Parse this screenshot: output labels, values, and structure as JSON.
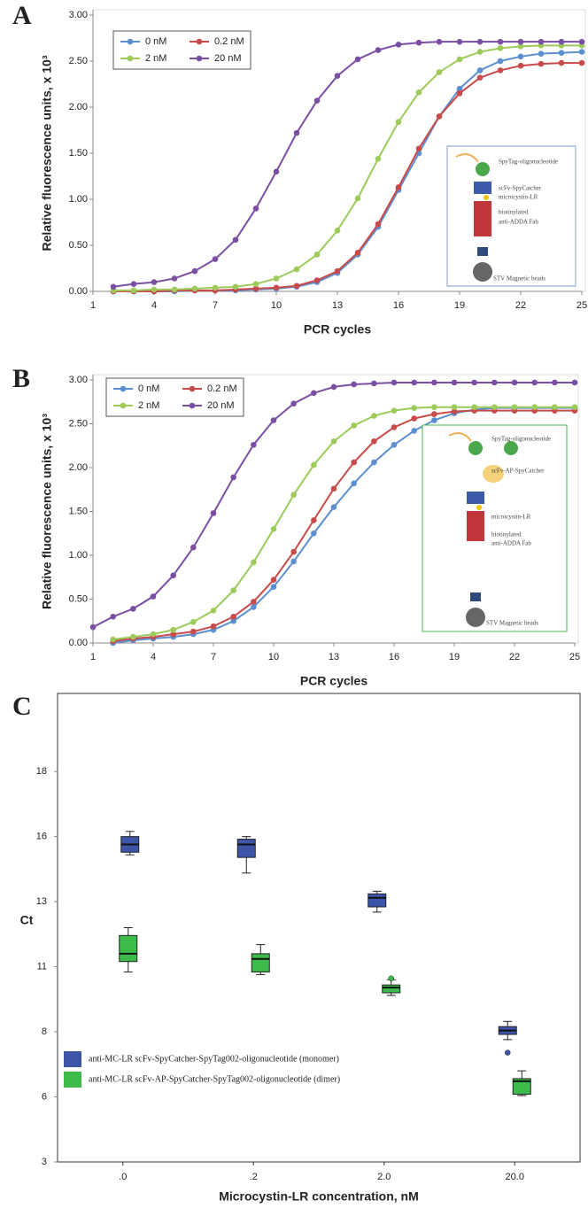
{
  "chart_data": [
    {
      "type": "line",
      "panel": "A",
      "xlabel": "PCR cycles",
      "ylabel": "Relative fluorescence units, x 10³",
      "x": [
        1,
        2,
        3,
        4,
        5,
        6,
        7,
        8,
        9,
        10,
        11,
        12,
        13,
        14,
        15,
        16,
        17,
        18,
        19,
        20,
        21,
        22,
        23,
        24,
        25
      ],
      "xlim": [
        1,
        25
      ],
      "xticks": [
        1,
        4,
        7,
        10,
        13,
        16,
        19,
        22,
        25
      ],
      "ylim": [
        0,
        3
      ],
      "yticks": [
        {
          "value": 0,
          "label": "0.00"
        },
        {
          "value": 0.5,
          "label": "0.50"
        },
        {
          "value": 1,
          "label": "1.00"
        },
        {
          "value": 1.5,
          "label": "1.50"
        },
        {
          "value": 2,
          "label": "2.00"
        },
        {
          "value": 2.5,
          "label": "2.50"
        },
        {
          "value": 3,
          "label": "3.00"
        }
      ],
      "markers": true,
      "series": [
        {
          "name": "0 nM",
          "color": "#5b8fd0",
          "values": [
            null,
            0.0,
            0.0,
            0.0,
            0.0,
            0.01,
            0.01,
            0.01,
            0.02,
            0.03,
            0.05,
            0.1,
            0.2,
            0.4,
            0.7,
            1.1,
            1.5,
            1.9,
            2.2,
            2.4,
            2.5,
            2.55,
            2.58,
            2.59,
            2.6
          ]
        },
        {
          "name": "0.2 nM",
          "color": "#c94a4a",
          "values": [
            null,
            0.0,
            0.0,
            0.0,
            0.01,
            0.01,
            0.01,
            0.02,
            0.03,
            0.04,
            0.06,
            0.12,
            0.22,
            0.42,
            0.73,
            1.13,
            1.55,
            1.9,
            2.15,
            2.32,
            2.4,
            2.45,
            2.47,
            2.48,
            2.48
          ]
        },
        {
          "name": "2 nM",
          "color": "#9ccb5a",
          "values": [
            null,
            0.01,
            0.01,
            0.02,
            0.02,
            0.03,
            0.04,
            0.05,
            0.08,
            0.14,
            0.24,
            0.4,
            0.66,
            1.01,
            1.44,
            1.84,
            2.16,
            2.38,
            2.52,
            2.6,
            2.64,
            2.66,
            2.67,
            2.67,
            2.67
          ]
        },
        {
          "name": "20 nM",
          "color": "#7a4fa3",
          "values": [
            null,
            0.05,
            0.08,
            0.1,
            0.14,
            0.22,
            0.35,
            0.56,
            0.9,
            1.3,
            1.72,
            2.07,
            2.34,
            2.52,
            2.62,
            2.68,
            2.7,
            2.71,
            2.71,
            2.71,
            2.71,
            2.71,
            2.71,
            2.71,
            2.71
          ]
        }
      ],
      "inset_labels": [
        "SpyTag-oligonucleotide",
        "scFv-SpyCatcher",
        "microcystin-LR",
        "biotinylated",
        "anti-ADDA Fab",
        "STV Magnetic beads"
      ]
    },
    {
      "type": "line",
      "panel": "B",
      "xlabel": "PCR cycles",
      "ylabel": "Relative fluorescence units, x 10³",
      "x": [
        1,
        2,
        3,
        4,
        5,
        6,
        7,
        8,
        9,
        10,
        11,
        12,
        13,
        14,
        15,
        16,
        17,
        18,
        19,
        20,
        21,
        22,
        23,
        24,
        25
      ],
      "xlim": [
        1,
        25
      ],
      "xticks": [
        1,
        4,
        7,
        10,
        13,
        16,
        19,
        22,
        25
      ],
      "ylim": [
        0,
        3
      ],
      "yticks": [
        {
          "value": 0,
          "label": "0.00"
        },
        {
          "value": 0.5,
          "label": "0.50"
        },
        {
          "value": 1,
          "label": "1.00"
        },
        {
          "value": 1.5,
          "label": "1.50"
        },
        {
          "value": 2,
          "label": "2.00"
        },
        {
          "value": 2.5,
          "label": "2.50"
        },
        {
          "value": 3,
          "label": "3.00"
        }
      ],
      "markers": true,
      "series": [
        {
          "name": "0 nM",
          "color": "#5b8fd0",
          "values": [
            null,
            0.0,
            0.03,
            0.05,
            0.07,
            0.1,
            0.15,
            0.25,
            0.41,
            0.64,
            0.93,
            1.25,
            1.55,
            1.82,
            2.06,
            2.26,
            2.42,
            2.54,
            2.62,
            2.66,
            2.68,
            2.68,
            2.68,
            2.68,
            2.68
          ]
        },
        {
          "name": "0.2 nM",
          "color": "#c94a4a",
          "values": [
            null,
            0.02,
            0.05,
            0.07,
            0.1,
            0.13,
            0.19,
            0.3,
            0.47,
            0.72,
            1.04,
            1.4,
            1.76,
            2.06,
            2.3,
            2.46,
            2.56,
            2.61,
            2.64,
            2.65,
            2.65,
            2.65,
            2.65,
            2.65,
            2.65
          ]
        },
        {
          "name": "2 nM",
          "color": "#9ccb5a",
          "values": [
            null,
            0.04,
            0.07,
            0.1,
            0.15,
            0.24,
            0.37,
            0.6,
            0.92,
            1.3,
            1.69,
            2.03,
            2.3,
            2.48,
            2.59,
            2.65,
            2.68,
            2.69,
            2.69,
            2.69,
            2.69,
            2.69,
            2.69,
            2.69,
            2.69
          ]
        },
        {
          "name": "20 nM",
          "color": "#7a4fa3",
          "values": [
            0.18,
            0.3,
            0.39,
            0.53,
            0.77,
            1.09,
            1.48,
            1.89,
            2.26,
            2.54,
            2.73,
            2.85,
            2.92,
            2.95,
            2.96,
            2.97,
            2.97,
            2.97,
            2.97,
            2.97,
            2.97,
            2.97,
            2.97,
            2.97,
            2.97
          ]
        }
      ],
      "inset_labels": [
        "SpyTag-oligonucleotide",
        "scFv-AP-SpyCatcher",
        "microcystin-LR",
        "biotinylated",
        "anti-ADDA Fab",
        "STV Magnetic beads"
      ]
    },
    {
      "type": "box",
      "panel": "C",
      "xlabel": "Microcystin-LR concentration, nM",
      "ylabel": "Ct",
      "categories": [
        ".0",
        ".2",
        "2.0",
        "20.0"
      ],
      "ylim": [
        3,
        21
      ],
      "yticks": [
        3,
        {
          "value": 5.5,
          "label": "6"
        },
        8,
        {
          "value": 10.5,
          "label": "11"
        },
        13,
        {
          "value": 15.5,
          "label": "16"
        },
        18
      ],
      "series": [
        {
          "name": "anti-MC-LR scFv-SpyCatcher-SpyTag002-oligonucleotide (monomer)",
          "color": "#3d55a8",
          "whisker_low": [
            14.8,
            14.1,
            12.6,
            7.7
          ],
          "q1": [
            14.9,
            14.7,
            12.8,
            7.9
          ],
          "median": [
            15.2,
            15.2,
            13.15,
            8.05
          ],
          "q3": [
            15.5,
            15.4,
            13.3,
            8.2
          ],
          "whisker_high": [
            15.7,
            15.5,
            13.4,
            8.4
          ],
          "outliers": [
            null,
            null,
            null,
            7.2
          ]
        },
        {
          "name": "anti-MC-LR scFv-AP-SpyCatcher-SpyTag002-oligonucleotide (dimer)",
          "color": "#3dbb4a",
          "whisker_low": [
            10.3,
            10.2,
            9.4,
            5.55
          ],
          "q1": [
            10.7,
            10.3,
            9.5,
            5.6
          ],
          "median": [
            11.0,
            10.8,
            9.7,
            6.1
          ],
          "q3": [
            11.7,
            11.0,
            9.8,
            6.2
          ],
          "whisker_high": [
            12.0,
            11.35,
            10.0,
            6.5
          ],
          "outliers": [
            null,
            null,
            10.05,
            null
          ]
        }
      ]
    }
  ]
}
